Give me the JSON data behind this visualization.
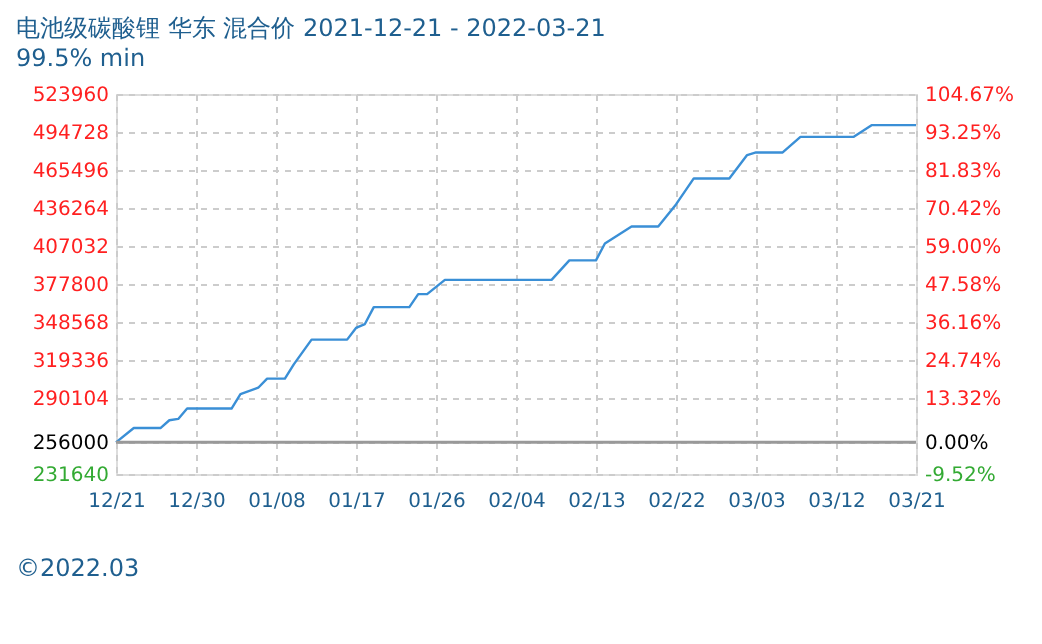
{
  "chart_data": {
    "type": "line",
    "title": "电池级碳酸锂 华东 混合价 2021-12-21 - 2022-03-21",
    "subtitle": "99.5% min",
    "x": [
      "2021-12-21",
      "2021-12-23",
      "2021-12-26",
      "2021-12-27",
      "2021-12-28",
      "2021-12-29",
      "2022-01-03",
      "2022-01-04",
      "2022-01-06",
      "2022-01-07",
      "2022-01-09",
      "2022-01-10",
      "2022-01-12",
      "2022-01-16",
      "2022-01-17",
      "2022-01-18",
      "2022-01-19",
      "2022-01-23",
      "2022-01-24",
      "2022-01-25",
      "2022-01-27",
      "2022-02-08",
      "2022-02-10",
      "2022-02-13",
      "2022-02-14",
      "2022-02-17",
      "2022-02-20",
      "2022-02-22",
      "2022-02-24",
      "2022-02-28",
      "2022-03-02",
      "2022-03-03",
      "2022-03-06",
      "2022-03-08",
      "2022-03-14",
      "2022-03-16",
      "2022-03-21"
    ],
    "series": [
      {
        "color": "#3a8fd6",
        "values": [
          256000,
          267000,
          267000,
          273000,
          274000,
          282000,
          282000,
          293000,
          298000,
          305000,
          305000,
          316000,
          335000,
          335000,
          344000,
          347000,
          360000,
          360000,
          370000,
          370000,
          381000,
          381000,
          396000,
          396000,
          409000,
          422000,
          422000,
          439000,
          459000,
          459000,
          477000,
          479000,
          479000,
          491000,
          491000,
          500000,
          500000
        ]
      }
    ],
    "xlim": [
      "2021-12-21",
      "2022-03-21"
    ],
    "xticks": [
      {
        "value": "2021-12-21",
        "label": "12/21"
      },
      {
        "value": "2021-12-30",
        "label": "12/30"
      },
      {
        "value": "2022-01-08",
        "label": "01/08"
      },
      {
        "value": "2022-01-17",
        "label": "01/17"
      },
      {
        "value": "2022-01-26",
        "label": "01/26"
      },
      {
        "value": "2022-02-04",
        "label": "02/04"
      },
      {
        "value": "2022-02-13",
        "label": "02/13"
      },
      {
        "value": "2022-02-22",
        "label": "02/22"
      },
      {
        "value": "2022-03-03",
        "label": "03/03"
      },
      {
        "value": "2022-03-12",
        "label": "03/12"
      },
      {
        "value": "2022-03-21",
        "label": "03/21"
      }
    ],
    "ylim": [
      231640,
      523960
    ],
    "yticks": [
      231640,
      256000,
      290104,
      319336,
      348568,
      377800,
      407032,
      436264,
      465496,
      494728,
      523960
    ],
    "y2lim": [
      -9.52,
      104.67
    ],
    "y2ticks": [
      {
        "value": -9.52,
        "label": "-9.52%"
      },
      {
        "value": 0,
        "label": "0.00%"
      },
      {
        "value": 13.32,
        "label": "13.32%"
      },
      {
        "value": 24.74,
        "label": "24.74%"
      },
      {
        "value": 36.16,
        "label": "36.16%"
      },
      {
        "value": 47.58,
        "label": "47.58%"
      },
      {
        "value": 59.0,
        "label": "59.00%"
      },
      {
        "value": 70.42,
        "label": "70.42%"
      },
      {
        "value": 81.83,
        "label": "81.83%"
      },
      {
        "value": 93.25,
        "label": "93.25%"
      },
      {
        "value": 104.67,
        "label": "104.67%"
      }
    ],
    "ref_lines": [
      {
        "axis": "y2",
        "value": 0,
        "color": "#999999"
      }
    ],
    "grid": true,
    "marker": "none",
    "line_style": "solid",
    "annotations": [
      "©2022.03"
    ]
  }
}
